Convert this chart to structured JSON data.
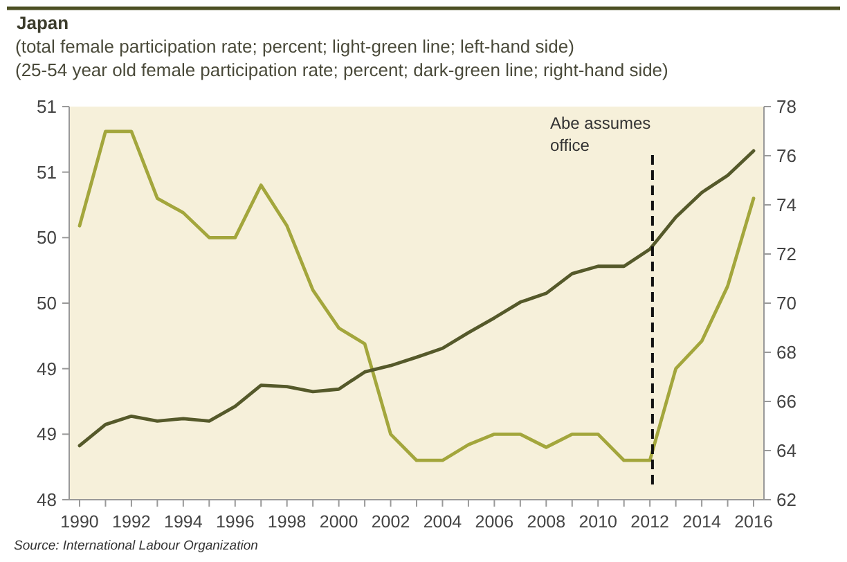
{
  "chart_data": {
    "type": "line",
    "title": "Japan",
    "subtitle": "(total female participation rate; percent; light-green line; left-hand side)\n(25-54 year old female participation rate; percent; dark-green line; right-hand side)",
    "x": [
      1990,
      1991,
      1992,
      1993,
      1994,
      1995,
      1996,
      1997,
      1998,
      1999,
      2000,
      2001,
      2002,
      2003,
      2004,
      2005,
      2006,
      2007,
      2008,
      2009,
      2010,
      2011,
      2012,
      2013,
      2014,
      2015,
      2016
    ],
    "series": [
      {
        "color": "#a3a63c",
        "values": [
          50.09,
          50.81,
          50.81,
          50.3,
          50.19,
          50.0,
          50.0,
          50.4,
          50.09,
          49.6,
          49.31,
          49.19,
          48.5,
          48.3,
          48.3,
          48.42,
          48.5,
          48.5,
          48.4,
          48.5,
          48.5,
          48.3,
          48.3,
          49.0,
          49.21,
          49.63,
          50.3
        ]
      },
      {
        "color": "#55592a",
        "axis": "y2",
        "values": [
          64.2,
          65.06,
          65.4,
          65.2,
          65.3,
          65.2,
          65.8,
          66.66,
          66.6,
          66.4,
          66.5,
          67.2,
          67.46,
          67.8,
          68.16,
          68.8,
          69.4,
          70.04,
          70.4,
          71.2,
          71.5,
          71.5,
          72.2,
          73.5,
          74.5,
          75.2,
          76.2
        ]
      }
    ],
    "xlim": [
      1989.6,
      2016.4
    ],
    "xticks": [
      1990,
      {
        "value": 1991,
        "label": null
      },
      1992,
      {
        "value": 1993,
        "label": null
      },
      1994,
      {
        "value": 1995,
        "label": null
      },
      1996,
      {
        "value": 1997,
        "label": null
      },
      1998,
      {
        "value": 1999,
        "label": null
      },
      2000,
      {
        "value": 2001,
        "label": null
      },
      2002,
      {
        "value": 2003,
        "label": null
      },
      2004,
      {
        "value": 2005,
        "label": null
      },
      2006,
      {
        "value": 2007,
        "label": null
      },
      2008,
      {
        "value": 2009,
        "label": null
      },
      2010,
      {
        "value": 2011,
        "label": null
      },
      2012,
      {
        "value": 2013,
        "label": null
      },
      2014,
      {
        "value": 2015,
        "label": null
      },
      2016
    ],
    "ylim": [
      48,
      51
    ],
    "yticks": [
      48,
      {
        "value": 48.5,
        "label": "49"
      },
      49,
      {
        "value": 49.5,
        "label": "50"
      },
      50,
      {
        "value": 50.5,
        "label": "51"
      },
      51
    ],
    "y2lim": [
      62,
      78
    ],
    "y2ticks": [
      62,
      64,
      66,
      68,
      70,
      72,
      74,
      76,
      78
    ],
    "ref_lines": [
      {
        "axis": "x",
        "value": 2012.1,
        "label": "Abe assumes office",
        "color": "#111111",
        "line_style": "dashed"
      }
    ],
    "annotations": [
      "Source: International Labour Organization"
    ],
    "grid": false,
    "line_style": "solid",
    "marker": "none"
  }
}
